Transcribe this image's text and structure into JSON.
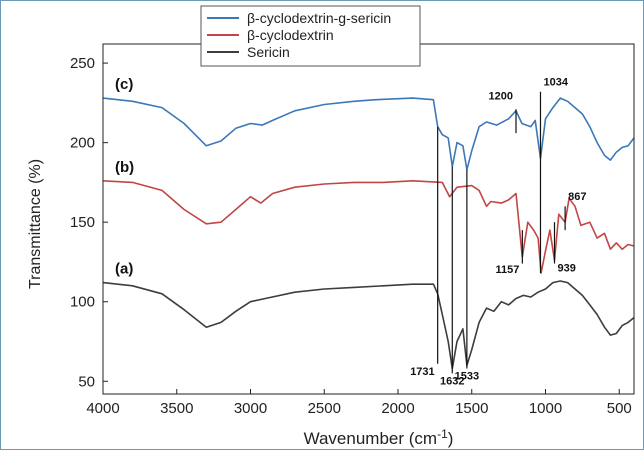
{
  "chart_data": {
    "type": "line",
    "xlabel": "Wavenumber (cm",
    "xlabel_sup": "-1",
    "xlabel_end": ")",
    "ylabel": "Transmittance (%)",
    "xlim": [
      4000,
      400
    ],
    "ylim": [
      42,
      262
    ],
    "x_ticks": [
      4000,
      3500,
      3000,
      2500,
      2000,
      1500,
      1000,
      500
    ],
    "y_ticks": [
      50,
      100,
      150,
      200,
      250
    ],
    "legend_position": "top-center",
    "grid": false,
    "series": [
      {
        "name": "β-cyclodextrin-g-sericin",
        "curve_label": "(c)",
        "color": "#3b78b8",
        "points": [
          [
            4000,
            228
          ],
          [
            3800,
            226
          ],
          [
            3600,
            222
          ],
          [
            3450,
            212
          ],
          [
            3300,
            198
          ],
          [
            3200,
            201
          ],
          [
            3100,
            209
          ],
          [
            3000,
            212
          ],
          [
            2920,
            211
          ],
          [
            2850,
            214
          ],
          [
            2700,
            220
          ],
          [
            2500,
            224
          ],
          [
            2300,
            226
          ],
          [
            2150,
            227
          ],
          [
            1900,
            228
          ],
          [
            1760,
            227
          ],
          [
            1731,
            210
          ],
          [
            1700,
            205
          ],
          [
            1660,
            203
          ],
          [
            1632,
            185
          ],
          [
            1600,
            200
          ],
          [
            1560,
            198
          ],
          [
            1533,
            183
          ],
          [
            1500,
            195
          ],
          [
            1450,
            210
          ],
          [
            1400,
            213
          ],
          [
            1330,
            211
          ],
          [
            1250,
            215
          ],
          [
            1200,
            220
          ],
          [
            1160,
            212
          ],
          [
            1100,
            210
          ],
          [
            1070,
            214
          ],
          [
            1034,
            190
          ],
          [
            1000,
            215
          ],
          [
            950,
            222
          ],
          [
            900,
            228
          ],
          [
            850,
            226
          ],
          [
            800,
            222
          ],
          [
            750,
            218
          ],
          [
            700,
            210
          ],
          [
            650,
            200
          ],
          [
            600,
            192
          ],
          [
            560,
            189
          ],
          [
            520,
            194
          ],
          [
            480,
            197
          ],
          [
            440,
            198
          ],
          [
            400,
            203
          ]
        ]
      },
      {
        "name": "β-cyclodextrin",
        "curve_label": "(b)",
        "color": "#c24645",
        "points": [
          [
            4000,
            176
          ],
          [
            3800,
            175
          ],
          [
            3600,
            170
          ],
          [
            3450,
            158
          ],
          [
            3300,
            149
          ],
          [
            3200,
            150
          ],
          [
            3100,
            158
          ],
          [
            3000,
            166
          ],
          [
            2930,
            162
          ],
          [
            2850,
            168
          ],
          [
            2700,
            172
          ],
          [
            2500,
            174
          ],
          [
            2300,
            175
          ],
          [
            2100,
            175
          ],
          [
            1900,
            176
          ],
          [
            1700,
            175
          ],
          [
            1650,
            166
          ],
          [
            1600,
            172
          ],
          [
            1500,
            173
          ],
          [
            1450,
            170
          ],
          [
            1400,
            160
          ],
          [
            1370,
            163
          ],
          [
            1300,
            162
          ],
          [
            1250,
            164
          ],
          [
            1200,
            168
          ],
          [
            1157,
            128
          ],
          [
            1120,
            150
          ],
          [
            1080,
            145
          ],
          [
            1050,
            140
          ],
          [
            1030,
            118
          ],
          [
            1000,
            132
          ],
          [
            970,
            145
          ],
          [
            939,
            126
          ],
          [
            910,
            155
          ],
          [
            867,
            150
          ],
          [
            840,
            165
          ],
          [
            800,
            160
          ],
          [
            760,
            148
          ],
          [
            700,
            150
          ],
          [
            650,
            140
          ],
          [
            600,
            143
          ],
          [
            560,
            133
          ],
          [
            520,
            137
          ],
          [
            480,
            133
          ],
          [
            440,
            136
          ],
          [
            400,
            135
          ]
        ]
      },
      {
        "name": "Sericin",
        "curve_label": "(a)",
        "color": "#3d3d3d",
        "points": [
          [
            4000,
            112
          ],
          [
            3800,
            110
          ],
          [
            3600,
            105
          ],
          [
            3450,
            95
          ],
          [
            3300,
            84
          ],
          [
            3200,
            87
          ],
          [
            3100,
            94
          ],
          [
            3000,
            100
          ],
          [
            2900,
            102
          ],
          [
            2700,
            106
          ],
          [
            2500,
            108
          ],
          [
            2300,
            109
          ],
          [
            2100,
            110
          ],
          [
            1900,
            111
          ],
          [
            1760,
            111
          ],
          [
            1731,
            105
          ],
          [
            1700,
            92
          ],
          [
            1660,
            75
          ],
          [
            1632,
            58
          ],
          [
            1600,
            75
          ],
          [
            1560,
            83
          ],
          [
            1533,
            60
          ],
          [
            1500,
            70
          ],
          [
            1450,
            87
          ],
          [
            1400,
            96
          ],
          [
            1350,
            94
          ],
          [
            1300,
            100
          ],
          [
            1250,
            98
          ],
          [
            1200,
            102
          ],
          [
            1150,
            104
          ],
          [
            1100,
            103
          ],
          [
            1050,
            106
          ],
          [
            1000,
            108
          ],
          [
            950,
            112
          ],
          [
            900,
            113
          ],
          [
            850,
            112
          ],
          [
            800,
            108
          ],
          [
            750,
            104
          ],
          [
            700,
            98
          ],
          [
            650,
            92
          ],
          [
            600,
            84
          ],
          [
            560,
            79
          ],
          [
            520,
            80
          ],
          [
            480,
            85
          ],
          [
            440,
            87
          ],
          [
            400,
            90
          ]
        ]
      }
    ],
    "annotations": [
      {
        "text": "1731",
        "x": 1731,
        "anchor_y": 210,
        "text_y": 54,
        "line_top": 210,
        "line_bottom": 61,
        "side": "left"
      },
      {
        "text": "1632",
        "x": 1632,
        "anchor_y": 185,
        "text_y": 48,
        "line_top": 185,
        "line_bottom": 55,
        "side": "center"
      },
      {
        "text": "1533",
        "x": 1533,
        "anchor_y": 183,
        "text_y": 51,
        "line_top": 183,
        "line_bottom": 58,
        "side": "center"
      },
      {
        "text": "1200",
        "x": 1200,
        "anchor_y": 212,
        "text_y": 227,
        "line_top": 221,
        "line_bottom": 206,
        "side": "left"
      },
      {
        "text": "1034",
        "x": 1034,
        "anchor_y": 118,
        "text_y": 236,
        "line_top": 232,
        "line_bottom": 118,
        "side": "right"
      },
      {
        "text": "1157",
        "x": 1157,
        "anchor_y": 128,
        "text_y": 118,
        "line_top": 145,
        "line_bottom": 124,
        "side": "left"
      },
      {
        "text": "939",
        "x": 939,
        "anchor_y": 126,
        "text_y": 119,
        "line_top": 150,
        "line_bottom": 124,
        "side": "right"
      },
      {
        "text": "867",
        "x": 867,
        "anchor_y": 150,
        "text_y": 164,
        "line_top": 160,
        "line_bottom": 145,
        "side": "right"
      }
    ]
  }
}
